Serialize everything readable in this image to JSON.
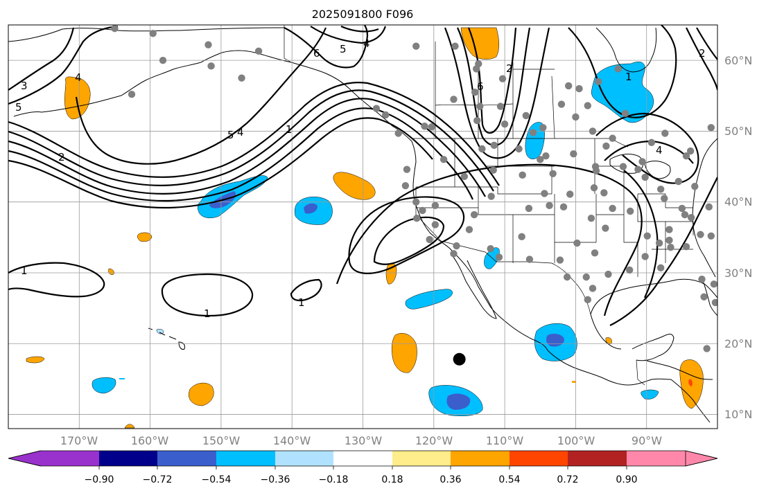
{
  "title": "2025091800 F096",
  "lat_labels": [
    "60°N",
    "50°N",
    "40°N",
    "30°N",
    "20°N",
    "10°N"
  ],
  "lon_labels": [
    "170°W",
    "160°W",
    "150°W",
    "140°W",
    "130°W",
    "120°W",
    "110°W",
    "100°W",
    "90°W"
  ],
  "colorbar": {
    "tick_labels": [
      "−0.90",
      "−0.72",
      "−0.54",
      "−0.36",
      "−0.18",
      "0.18",
      "0.36",
      "0.54",
      "0.72",
      "0.90"
    ],
    "colors": [
      "#9932cc",
      "#00008b",
      "#3a5fcd",
      "#00bfff",
      "#b0e2ff",
      "#ffffff",
      "#ffec8b",
      "#ffa500",
      "#ff4500",
      "#b22222",
      "#ff88aa"
    ],
    "extend": "both"
  },
  "contour_labels": [
    "1",
    "2",
    "3",
    "4",
    "5",
    "6"
  ],
  "colors": {
    "grid": "#9a9a9a",
    "station": "#808080",
    "contour": "#000000",
    "axis_label": "#808080"
  },
  "map_data": {
    "extent_lon": [
      -180,
      -80
    ],
    "extent_lat": [
      8,
      65
    ],
    "gridlines_lon": [
      -170,
      -160,
      -150,
      -140,
      -130,
      -120,
      -110,
      -100,
      -90
    ],
    "gridlines_lat": [
      10,
      20,
      30,
      40,
      50,
      60
    ],
    "marker": {
      "lon": -116.4,
      "lat": 17.8
    }
  }
}
